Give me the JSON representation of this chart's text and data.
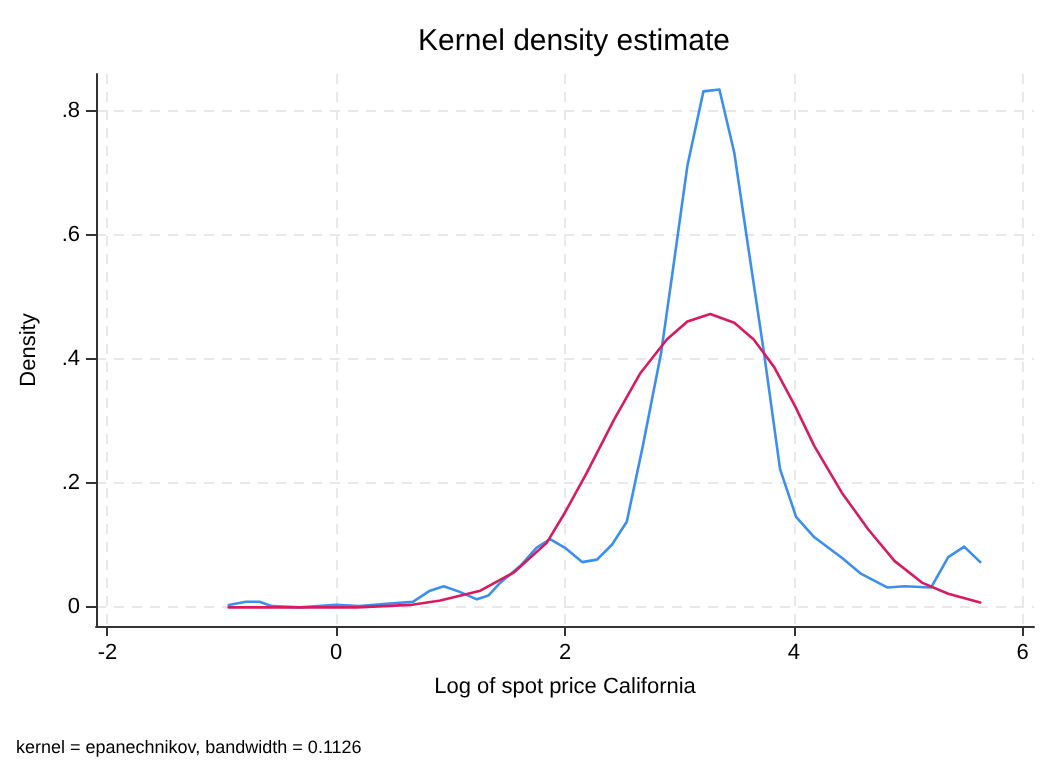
{
  "chart_data": {
    "type": "line",
    "title": "Kernel density estimate",
    "xlabel": "Log of spot price California",
    "ylabel": "Density",
    "annotations": [
      "kernel = epanechnikov, bandwidth = 0.1126"
    ],
    "xlim": [
      -2.1,
      6.1
    ],
    "xticks": [
      -2,
      0,
      2,
      4,
      6
    ],
    "ylim": [
      -0.03,
      0.86
    ],
    "yticks": [
      0,
      {
        "value": 0.2,
        "label": ".2"
      },
      {
        "value": 0.4,
        "label": ".4"
      },
      {
        "value": 0.6,
        "label": ".6"
      },
      {
        "value": 0.8,
        "label": ".8"
      }
    ],
    "grid": true,
    "marker": "none",
    "line_style": "solid",
    "series": [
      {
        "color": "#3b8ff0",
        "x": [
          -0.94,
          -0.79,
          -0.67,
          -0.56,
          -0.32,
          0,
          0.2,
          0.44,
          0.67,
          0.82,
          0.94,
          1.08,
          1.23,
          1.33,
          1.43,
          1.61,
          1.75,
          1.87,
          2.0,
          2.15,
          2.28,
          2.41,
          2.54,
          2.68,
          2.84,
          2.94,
          3.07,
          3.21,
          3.35,
          3.48,
          3.6,
          3.74,
          3.88,
          4.02,
          4.18,
          4.42,
          4.59,
          4.82,
          4.97,
          5.2,
          5.35,
          5.49,
          5.63
        ],
        "values": [
          0.004,
          0.009,
          0.009,
          0.002,
          0,
          0.004,
          0.002,
          0.006,
          0.009,
          0.027,
          0.034,
          0.025,
          0.013,
          0.019,
          0.039,
          0.067,
          0.096,
          0.11,
          0.096,
          0.073,
          0.077,
          0.101,
          0.138,
          0.26,
          0.41,
          0.54,
          0.712,
          0.832,
          0.835,
          0.733,
          0.583,
          0.41,
          0.223,
          0.146,
          0.113,
          0.08,
          0.054,
          0.032,
          0.034,
          0.032,
          0.081,
          0.098,
          0.073
        ]
      },
      {
        "color": "#d81b60",
        "x": [
          -0.94,
          0.18,
          0.65,
          0.91,
          1.26,
          1.55,
          1.84,
          2.0,
          2.19,
          2.43,
          2.66,
          2.89,
          3.07,
          3.27,
          3.48,
          3.65,
          3.83,
          4.01,
          4.18,
          4.42,
          4.65,
          4.88,
          5.12,
          5.35,
          5.63
        ],
        "values": [
          0,
          0,
          0.004,
          0.011,
          0.027,
          0.056,
          0.104,
          0.153,
          0.217,
          0.303,
          0.378,
          0.432,
          0.461,
          0.473,
          0.459,
          0.432,
          0.387,
          0.325,
          0.26,
          0.185,
          0.126,
          0.075,
          0.04,
          0.022,
          0.008
        ]
      }
    ]
  }
}
